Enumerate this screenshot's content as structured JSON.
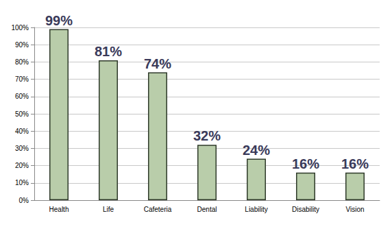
{
  "chart_data": {
    "type": "bar",
    "categories": [
      "Health",
      "Life",
      "Cafeteria",
      "Dental",
      "Liability",
      "Disability",
      "Vision"
    ],
    "values": [
      99,
      81,
      74,
      32,
      24,
      16,
      16
    ],
    "value_labels": [
      "99%",
      "81%",
      "74%",
      "32%",
      "24%",
      "16%",
      "16%"
    ],
    "color": "#b9cdaa",
    "ylim": [
      0,
      100
    ],
    "yticks": [
      {
        "value": 0,
        "label": "0%"
      },
      {
        "value": 10,
        "label": "10%"
      },
      {
        "value": 20,
        "label": "20%"
      },
      {
        "value": 30,
        "label": "30%"
      },
      {
        "value": 40,
        "label": "40%"
      },
      {
        "value": 50,
        "label": "50%"
      },
      {
        "value": 60,
        "label": "60%"
      },
      {
        "value": 70,
        "label": "70%"
      },
      {
        "value": 80,
        "label": "80%"
      },
      {
        "value": 90,
        "label": "90%"
      },
      {
        "value": 100,
        "label": "100%"
      }
    ],
    "grid": true,
    "data_labels": true
  }
}
